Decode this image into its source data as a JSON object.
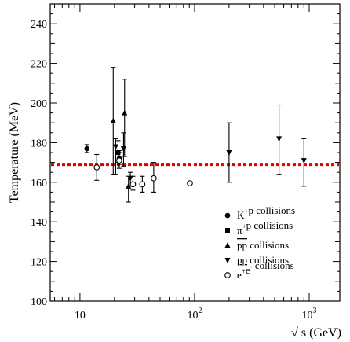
{
  "chart_data": {
    "type": "scatter",
    "title": "",
    "xlabel": "√ s (GeV)",
    "ylabel": "Temperature (MeV)",
    "xscale": "log",
    "xlim": [
      5.5,
      1850
    ],
    "ylim": [
      100,
      250
    ],
    "grid": false,
    "x_ticks": [
      {
        "value": 10,
        "base": "10",
        "exp": ""
      },
      {
        "value": 100,
        "base": "10",
        "exp": "2"
      },
      {
        "value": 1000,
        "base": "10",
        "exp": "3"
      }
    ],
    "y_ticks": [
      100,
      120,
      140,
      160,
      180,
      200,
      220,
      240
    ],
    "reference_line": {
      "y": 169,
      "color": "#e00000",
      "style": "dotted"
    },
    "legend": {
      "position": "bottom-right"
    },
    "series": [
      {
        "name": "K⁺p collisions",
        "label_parts": [
          [
            "K",
            ""
          ],
          [
            "+",
            "sup"
          ],
          [
            "p collisions",
            ""
          ]
        ],
        "marker": "filled-circle",
        "points": [
          {
            "x": 11.5,
            "y": 177,
            "lo": 175,
            "hi": 179
          },
          {
            "x": 22.0,
            "y": 172,
            "lo": 169,
            "hi": 175
          }
        ]
      },
      {
        "name": "π⁺p collisions",
        "label_parts": [
          [
            "π",
            ""
          ],
          [
            "+",
            "sup"
          ],
          [
            "p collisions",
            ""
          ]
        ],
        "marker": "filled-square",
        "points": [
          {
            "x": 21.5,
            "y": 175,
            "lo": 170,
            "hi": 181
          }
        ]
      },
      {
        "name": "pp̄ collisions",
        "label_parts": [
          [
            "pp",
            "over"
          ],
          [
            " collisions",
            ""
          ]
        ],
        "marker": "triangle-up",
        "points": [
          {
            "x": 19.5,
            "y": 191,
            "lo": 164,
            "hi": 218
          },
          {
            "x": 24.5,
            "y": 195,
            "lo": 173,
            "hi": 212
          },
          {
            "x": 26.5,
            "y": 158,
            "lo": 150,
            "hi": 163
          }
        ]
      },
      {
        "name": "pp collisions",
        "label_parts": [
          [
            "pp",
            "under"
          ],
          [
            " collisions",
            ""
          ]
        ],
        "marker": "triangle-down",
        "points": [
          {
            "x": 20.5,
            "y": 178,
            "lo": 164,
            "hi": 182
          },
          {
            "x": 24.0,
            "y": 177,
            "lo": 168,
            "hi": 185
          },
          {
            "x": 27.5,
            "y": 162,
            "lo": 158,
            "hi": 165
          },
          {
            "x": 200,
            "y": 175,
            "lo": 160,
            "hi": 190
          },
          {
            "x": 546,
            "y": 182,
            "lo": 164,
            "hi": 199
          },
          {
            "x": 900,
            "y": 171,
            "lo": 158,
            "hi": 182
          }
        ]
      },
      {
        "name": "e⁺e⁻ collisions",
        "label_parts": [
          [
            "e",
            ""
          ],
          [
            "+",
            "sup"
          ],
          [
            "e",
            ""
          ],
          [
            "-",
            "sup"
          ],
          [
            " collisions",
            ""
          ]
        ],
        "marker": "open-circle",
        "points": [
          {
            "x": 14,
            "y": 167.5,
            "lo": 161,
            "hi": 174
          },
          {
            "x": 22,
            "y": 171,
            "lo": 167,
            "hi": 176
          },
          {
            "x": 29,
            "y": 159,
            "lo": 156,
            "hi": 163
          },
          {
            "x": 35,
            "y": 159,
            "lo": 155,
            "hi": 163
          },
          {
            "x": 44,
            "y": 162,
            "lo": 155,
            "hi": 170
          },
          {
            "x": 91,
            "y": 159.5,
            "lo": 159.5,
            "hi": 159.5
          }
        ]
      }
    ]
  }
}
